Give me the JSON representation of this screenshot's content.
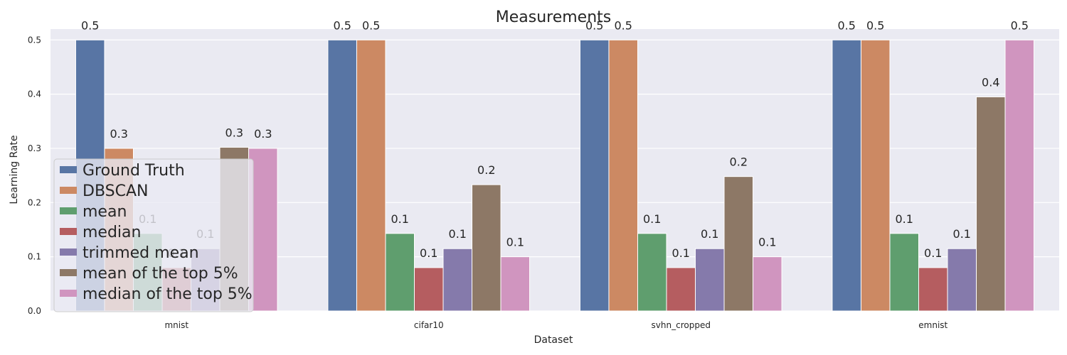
{
  "chart_data": {
    "type": "bar",
    "title": "Measurements",
    "xlabel": "Dataset",
    "ylabel": "Learning Rate",
    "categories": [
      "mnist",
      "cifar10",
      "svhn_cropped",
      "emnist"
    ],
    "ylim": [
      0,
      0.52
    ],
    "yticks": [
      "0.0",
      "0.1",
      "0.2",
      "0.3",
      "0.4",
      "0.5"
    ],
    "grid": true,
    "legend_position": "lower-left",
    "series": [
      {
        "name": "Ground Truth",
        "color": "#5875a4",
        "values": [
          0.5,
          0.5,
          0.5,
          0.5
        ],
        "labels": [
          "0.5",
          "0.5",
          "0.5",
          "0.5"
        ]
      },
      {
        "name": "DBSCAN",
        "color": "#cc8963",
        "values": [
          0.3,
          0.5,
          0.5,
          0.5
        ],
        "labels": [
          "0.3",
          "0.5",
          "0.5",
          "0.5"
        ]
      },
      {
        "name": "mean",
        "color": "#5f9e6e",
        "values": [
          0.143,
          0.143,
          0.143,
          0.143
        ],
        "labels": [
          "0.1",
          "0.1",
          "0.1",
          "0.1"
        ]
      },
      {
        "name": "median",
        "color": "#b55d60",
        "values": [
          0.08,
          0.08,
          0.08,
          0.08
        ],
        "labels": [
          "0.1",
          "0.1",
          "0.1",
          "0.1"
        ]
      },
      {
        "name": "trimmed mean",
        "color": "#857aab",
        "values": [
          0.115,
          0.115,
          0.115,
          0.115
        ],
        "labels": [
          "0.1",
          "0.1",
          "0.1",
          "0.1"
        ]
      },
      {
        "name": "mean of the top 5%",
        "color": "#8d7866",
        "values": [
          0.302,
          0.233,
          0.248,
          0.395
        ],
        "labels": [
          "0.3",
          "0.2",
          "0.2",
          "0.4"
        ]
      },
      {
        "name": "median of the top 5%",
        "color": "#d095bf",
        "values": [
          0.3,
          0.1,
          0.1,
          0.5
        ],
        "labels": [
          "0.3",
          "0.1",
          "0.1",
          "0.5"
        ]
      }
    ]
  }
}
